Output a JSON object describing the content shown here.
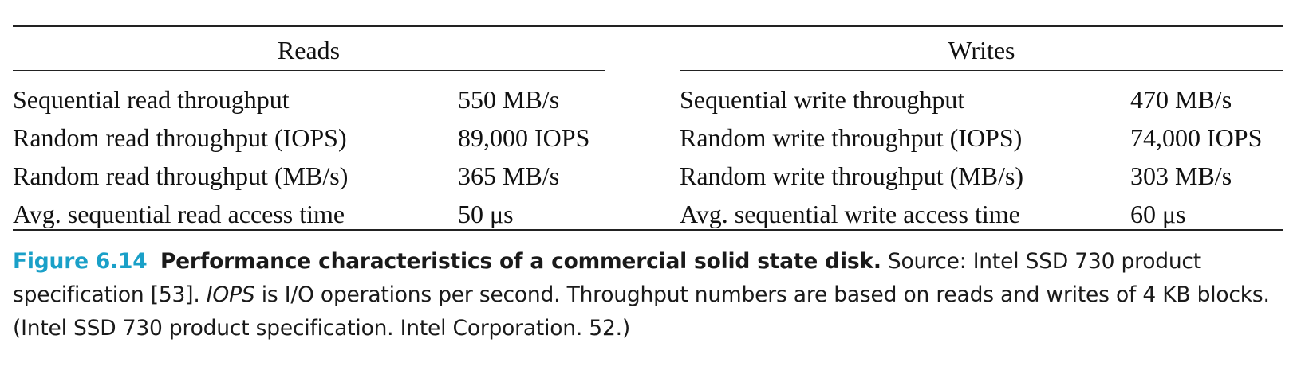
{
  "table": {
    "reads": {
      "heading": "Reads",
      "rows": [
        {
          "metric": "Sequential read throughput",
          "value": "550 MB/s"
        },
        {
          "metric": "Random read throughput (IOPS)",
          "value": "89,000 IOPS"
        },
        {
          "metric": "Random read throughput (MB/s)",
          "value": "365 MB/s"
        },
        {
          "metric": "Avg. sequential read access time",
          "value": "50 μs"
        }
      ]
    },
    "writes": {
      "heading": "Writes",
      "rows": [
        {
          "metric": "Sequential write throughput",
          "value": "470 MB/s"
        },
        {
          "metric": "Random write throughput (IOPS)",
          "value": "74,000 IOPS"
        },
        {
          "metric": "Random write throughput (MB/s)",
          "value": "303 MB/s"
        },
        {
          "metric": "Avg. sequential write access time",
          "value": "60 μs"
        }
      ]
    }
  },
  "caption": {
    "label": "Figure 6.14",
    "title": "Performance characteristics of a commercial solid state disk.",
    "text_1": " Source: Intel SSD 730 product specification [53]. ",
    "iops_term": "IOPS",
    "text_2": " is I/O operations per second. Throughput numbers are based on reads and writes of 4 KB blocks. (Intel SSD 730 product specification. Intel Corporation. 52.)"
  }
}
